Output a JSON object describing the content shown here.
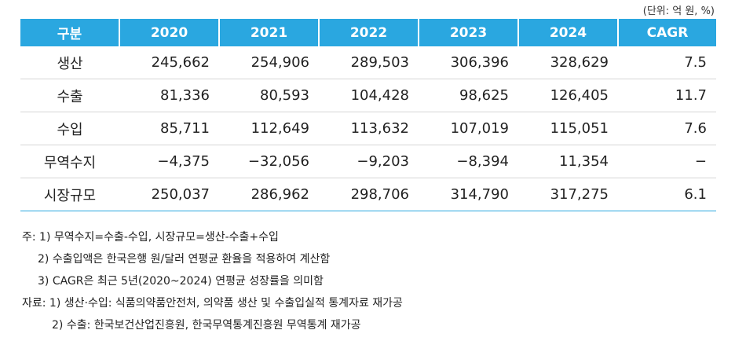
{
  "unit_note": "(단위: 억 원, %)",
  "table": {
    "headers": [
      "구분",
      "2020",
      "2021",
      "2022",
      "2023",
      "2024",
      "CAGR"
    ],
    "rows": [
      {
        "label": "생산",
        "values": [
          "245,662",
          "254,906",
          "289,503",
          "306,396",
          "328,629",
          "7.5"
        ]
      },
      {
        "label": "수출",
        "values": [
          "81,336",
          "80,593",
          "104,428",
          "98,625",
          "126,405",
          "11.7"
        ]
      },
      {
        "label": "수입",
        "values": [
          "85,711",
          "112,649",
          "113,632",
          "107,019",
          "115,051",
          "7.6"
        ]
      },
      {
        "label": "무역수지",
        "values": [
          "−4,375",
          "−32,056",
          "−9,203",
          "−8,394",
          "11,354",
          "−"
        ]
      },
      {
        "label": "시장규모",
        "values": [
          "250,037",
          "286,962",
          "298,706",
          "314,790",
          "317,275",
          "6.1"
        ]
      }
    ]
  },
  "notes": {
    "note_lines": [
      "주: 1) 무역수지=수출-수입, 시장규모=생산-수출+수입",
      "2) 수출입액은 한국은행 원/달러 연평균 환율을 적용하여 계산함",
      "3) CAGR은 최근 5년(2020~2024) 연평균 성장률을 의미함"
    ],
    "source_lines": [
      "자료: 1) 생산·수입: 식품의약품안전처, 의약품 생산 및 수출입실적 통계자료 재가공",
      "2) 수출: 한국보건산업진흥원, 한국무역통계진흥원 무역통계 재가공"
    ]
  }
}
